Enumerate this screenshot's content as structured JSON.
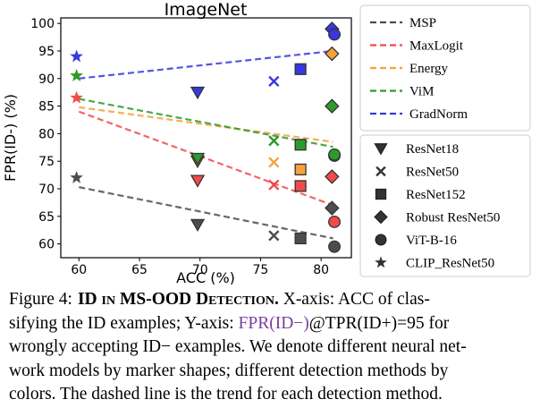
{
  "chart_data": {
    "type": "scatter",
    "title": "ImageNet",
    "xlabel": "ACC (%)",
    "ylabel": "FPR(ID-) (%)",
    "xlim": [
      58.5,
      82.5
    ],
    "ylim": [
      57.5,
      101
    ],
    "xticks": [
      60,
      65,
      70,
      75,
      80
    ],
    "yticks": [
      60,
      65,
      70,
      75,
      80,
      85,
      90,
      95,
      100
    ],
    "grid": false,
    "legend_methods": {
      "placement": "right-top",
      "entries": [
        {
          "name": "MSP",
          "color": "#4d4d4d"
        },
        {
          "name": "MaxLogit",
          "color": "#f04a4a"
        },
        {
          "name": "Energy",
          "color": "#f6a13a"
        },
        {
          "name": "ViM",
          "color": "#2c9a2c"
        },
        {
          "name": "GradNorm",
          "color": "#3838e0"
        }
      ]
    },
    "legend_models": {
      "placement": "right-bottom",
      "entries": [
        {
          "name": "ResNet18",
          "marker": "triangle-down"
        },
        {
          "name": "ResNet50",
          "marker": "x"
        },
        {
          "name": "ResNet152",
          "marker": "square"
        },
        {
          "name": "Robust ResNet50",
          "marker": "diamond"
        },
        {
          "name": "ViT-B-16",
          "marker": "circle"
        },
        {
          "name": "CLIP_ResNet50",
          "marker": "star"
        }
      ]
    },
    "models": [
      {
        "marker": "star",
        "acc": 59.8
      },
      {
        "marker": "triangle-down",
        "acc": 69.8
      },
      {
        "marker": "x",
        "acc": 76.1
      },
      {
        "marker": "square",
        "acc": 78.3
      },
      {
        "marker": "diamond",
        "acc": 80.9
      },
      {
        "marker": "circle",
        "acc": 81.1
      }
    ],
    "series": [
      {
        "name": "MSP",
        "color": "#4d4d4d",
        "values": [
          72.0,
          63.5,
          61.5,
          61.0,
          66.5,
          59.5
        ],
        "trend": [
          [
            60,
            70.3
          ],
          [
            81,
            61.0
          ]
        ]
      },
      {
        "name": "MaxLogit",
        "color": "#f04a4a",
        "values": [
          86.5,
          71.5,
          70.7,
          70.5,
          72.2,
          64.0
        ],
        "trend": [
          [
            60,
            84.0
          ],
          [
            81,
            67.0
          ]
        ]
      },
      {
        "name": "Energy",
        "color": "#f6a13a",
        "values": [
          90.5,
          75.0,
          74.8,
          73.5,
          94.5,
          76.0
        ],
        "trend": [
          [
            60,
            84.8
          ],
          [
            81,
            78.5
          ]
        ]
      },
      {
        "name": "ViM",
        "color": "#2c9a2c",
        "values": [
          90.5,
          75.5,
          78.7,
          78.0,
          85.0,
          76.2
        ],
        "trend": [
          [
            60,
            86.3
          ],
          [
            81,
            77.6
          ]
        ]
      },
      {
        "name": "GradNorm",
        "color": "#3838e0",
        "values": [
          94.0,
          87.5,
          89.5,
          91.7,
          99.0,
          98.0
        ],
        "trend": [
          [
            60,
            90.0
          ],
          [
            81,
            95.0
          ]
        ]
      }
    ]
  },
  "caption": {
    "label": "Figure 4:",
    "title": "ID in MS-OOD Detection.",
    "line1_rest": " X-axis: ACC of clas-",
    "line2_a": "sifying the ID examples; Y-axis: ",
    "line2_purple": "FPR(ID−)",
    "line2_b": "@TPR(ID+)=95 for",
    "line3": "wrongly accepting ID− examples. We denote different neural net-",
    "line4": "work models by marker shapes; different detection methods by",
    "line5": "colors. The dashed line is the trend for each detection method."
  }
}
